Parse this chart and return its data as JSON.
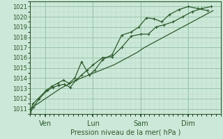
{
  "bg_color": "#cce8d8",
  "grid_major_color": "#99c4aa",
  "grid_minor_color": "#bbddc9",
  "line_color": "#2d5a2d",
  "ylabel_text": "Pression niveau de la mer( hPa )",
  "ylim": [
    1010.5,
    1021.5
  ],
  "yticks": [
    1011,
    1012,
    1013,
    1014,
    1015,
    1016,
    1017,
    1018,
    1019,
    1020,
    1021
  ],
  "xtick_labels": [
    "Ven",
    "Lun",
    "Sam",
    "Dim"
  ],
  "xtick_positions": [
    0.08,
    0.33,
    0.58,
    0.83
  ],
  "xlim": [
    0.0,
    1.0
  ],
  "num_days": 10,
  "series1_x": [
    0.0,
    0.018,
    0.048,
    0.09,
    0.12,
    0.15,
    0.18,
    0.21,
    0.24,
    0.27,
    0.3,
    0.33,
    0.38,
    0.43,
    0.48,
    0.53,
    0.58,
    0.62,
    0.66,
    0.7,
    0.75,
    0.8,
    0.85,
    0.9,
    0.95
  ],
  "series1_y": [
    1010.6,
    1011.2,
    1012.0,
    1012.8,
    1013.1,
    1013.3,
    1013.4,
    1013.1,
    1013.8,
    1014.3,
    1014.8,
    1015.3,
    1016.0,
    1016.1,
    1017.0,
    1018.1,
    1018.3,
    1018.3,
    1019.0,
    1019.2,
    1019.5,
    1020.0,
    1020.5,
    1020.8,
    1021.0
  ],
  "series2_x": [
    0.0,
    0.015,
    0.042,
    0.084,
    0.114,
    0.144,
    0.174,
    0.204,
    0.234,
    0.27,
    0.31,
    0.34,
    0.38,
    0.43,
    0.48,
    0.53,
    0.57,
    0.61,
    0.65,
    0.69,
    0.73,
    0.78,
    0.83,
    0.88,
    0.93
  ],
  "series2_y": [
    1010.7,
    1011.5,
    1012.0,
    1012.8,
    1013.2,
    1013.5,
    1013.8,
    1013.5,
    1014.0,
    1015.6,
    1014.3,
    1014.8,
    1015.8,
    1016.3,
    1018.2,
    1018.5,
    1019.0,
    1019.9,
    1019.8,
    1019.5,
    1020.2,
    1020.7,
    1021.0,
    1020.8,
    1020.6
  ],
  "series3_x": [
    0.0,
    0.04,
    0.08,
    0.12,
    0.16,
    0.2,
    0.24,
    0.28,
    0.32,
    0.36,
    0.4,
    0.44,
    0.48,
    0.52,
    0.56,
    0.6,
    0.64,
    0.68,
    0.72,
    0.76,
    0.8,
    0.84,
    0.88,
    0.92,
    0.96
  ],
  "series3_y": [
    1011.0,
    1011.5,
    1012.0,
    1012.5,
    1013.0,
    1013.4,
    1013.8,
    1014.1,
    1014.4,
    1014.7,
    1015.0,
    1015.3,
    1015.7,
    1016.1,
    1016.5,
    1017.0,
    1017.4,
    1017.8,
    1018.2,
    1018.6,
    1019.0,
    1019.4,
    1019.8,
    1020.2,
    1020.6
  ]
}
